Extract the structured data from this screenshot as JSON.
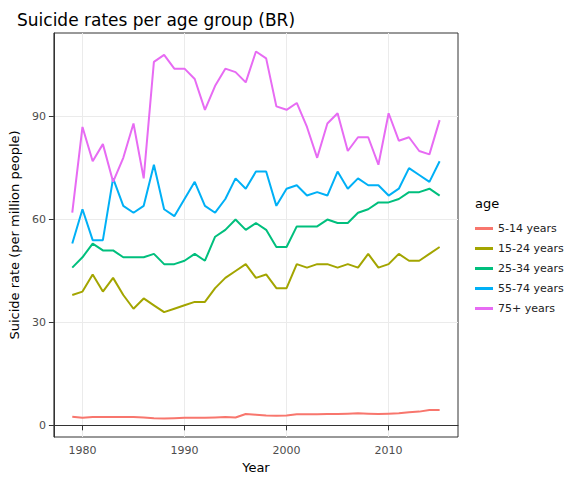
{
  "chart_data": {
    "type": "line",
    "title": "Suicide rates per age group (BR)",
    "x_label": "Year",
    "y_label": "Suicide rate (per million people)",
    "legend_title": "age",
    "legend": "right",
    "grid": true,
    "marker": "none",
    "line_style": "solid",
    "x": [
      1979,
      1980,
      1981,
      1982,
      1983,
      1984,
      1985,
      1986,
      1987,
      1988,
      1989,
      1990,
      1991,
      1992,
      1993,
      1994,
      1995,
      1996,
      1997,
      1998,
      1999,
      2000,
      2001,
      2002,
      2003,
      2004,
      2005,
      2006,
      2007,
      2008,
      2009,
      2010,
      2011,
      2012,
      2013,
      2014,
      2015
    ],
    "xlim": [
      1977.2,
      2016.8
    ],
    "xticks": [
      1980,
      1990,
      2000,
      2010
    ],
    "ylim": [
      -3.4,
      114.4
    ],
    "yticks": [
      0,
      30,
      60,
      90
    ],
    "series": [
      {
        "name": "5-14 years",
        "color": "#F8766D",
        "values": [
          2.5,
          2.2,
          2.4,
          2.4,
          2.4,
          2.4,
          2.4,
          2.3,
          2.1,
          2.0,
          2.1,
          2.2,
          2.2,
          2.2,
          2.3,
          2.4,
          2.3,
          3.3,
          3.1,
          2.9,
          2.8,
          2.9,
          3.2,
          3.2,
          3.2,
          3.3,
          3.3,
          3.4,
          3.5,
          3.4,
          3.3,
          3.4,
          3.5,
          3.8,
          4.0,
          4.5,
          4.5
        ]
      },
      {
        "name": "15-24 years",
        "color": "#A3A500",
        "values": [
          38,
          39,
          44,
          39,
          43,
          38,
          34,
          37,
          35,
          33,
          34,
          35,
          36,
          36,
          40,
          43,
          45,
          47,
          43,
          44,
          40,
          40,
          47,
          46,
          47,
          47,
          46,
          47,
          46,
          50,
          46,
          47,
          50,
          48,
          48,
          50,
          52
        ]
      },
      {
        "name": "25-34 years",
        "color": "#00BF7D",
        "values": [
          46,
          49,
          53,
          51,
          51,
          49,
          49,
          49,
          50,
          47,
          47,
          48,
          50,
          48,
          55,
          57,
          60,
          57,
          59,
          57,
          52,
          52,
          58,
          58,
          58,
          60,
          59,
          59,
          62,
          63,
          65,
          65,
          66,
          68,
          68,
          69,
          67
        ]
      },
      {
        "name": "55-74 years",
        "color": "#00B0F6",
        "values": [
          53,
          63,
          54,
          54,
          72,
          64,
          62,
          64,
          76,
          63,
          61,
          66,
          71,
          64,
          62,
          66,
          72,
          69,
          74,
          74,
          64,
          69,
          70,
          67,
          68,
          67,
          74,
          69,
          72,
          70,
          70,
          67,
          69,
          75,
          73,
          71,
          77
        ]
      },
      {
        "name": "75+ years",
        "color": "#E76BF3",
        "values": [
          62,
          87,
          77,
          82,
          71,
          78,
          88,
          72,
          106,
          108,
          104,
          104,
          101,
          92,
          99,
          104,
          103,
          100,
          109,
          107,
          93,
          92,
          94,
          87,
          78,
          88,
          91,
          80,
          84,
          84,
          76,
          91,
          83,
          84,
          80,
          79,
          89
        ]
      }
    ]
  }
}
